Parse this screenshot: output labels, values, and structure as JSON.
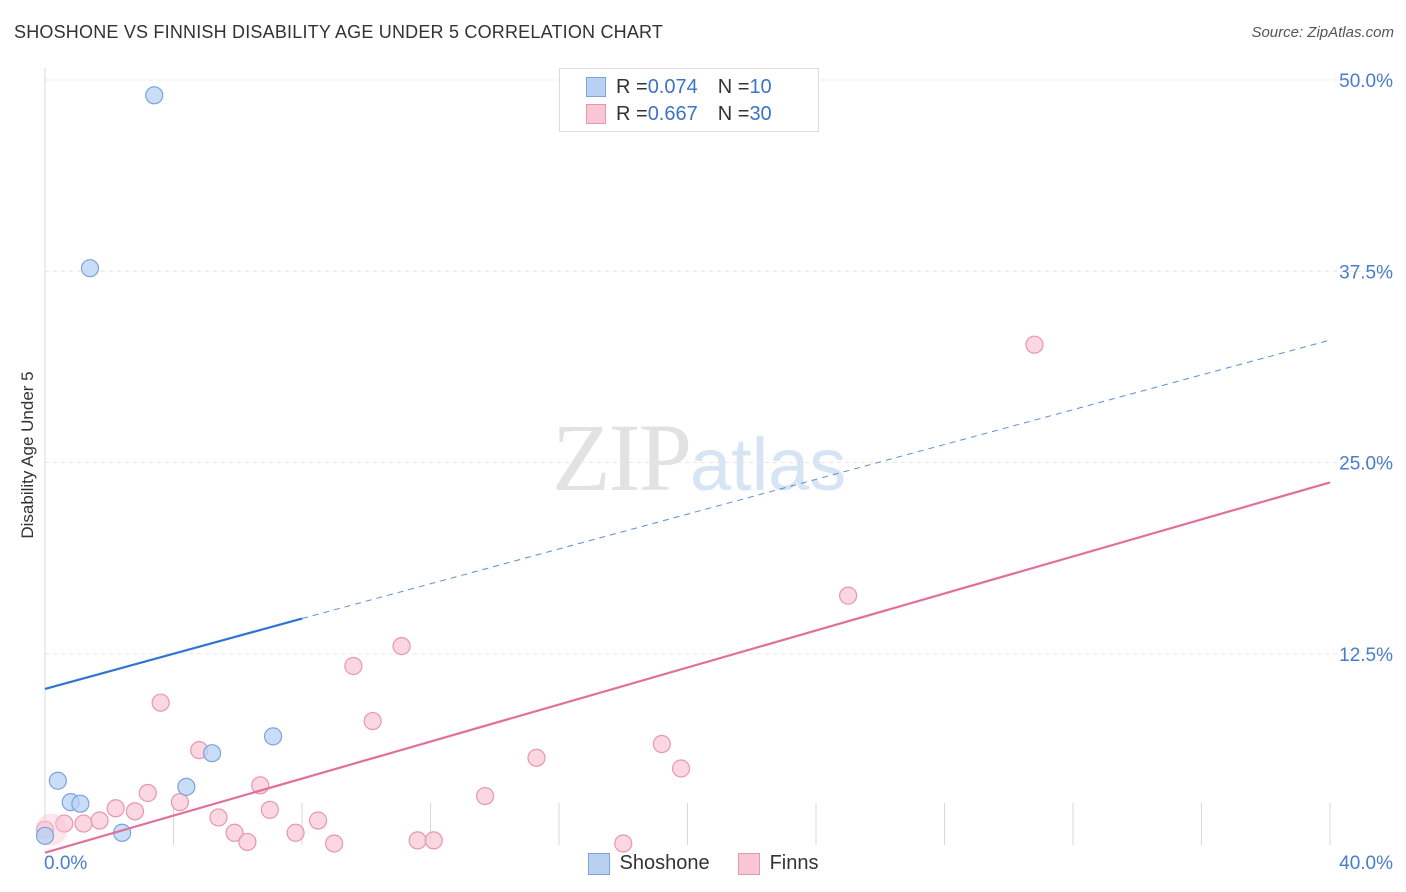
{
  "header": {
    "title": "SHOSHONE VS FINNISH DISABILITY AGE UNDER 5 CORRELATION CHART",
    "source": "Source: ZipAtlas.com"
  },
  "watermark": {
    "zip": "ZIP",
    "atlas": "atlas"
  },
  "colors": {
    "shoshone_fill": "#b8d1f3",
    "shoshone_stroke": "#7aa3dd",
    "shoshone_line": "#2f74d0",
    "finns_fill": "#f9c6d5",
    "finns_stroke": "#e996b0",
    "finns_line": "#e0709a",
    "tick_label": "#4a7cc9"
  },
  "legend": {
    "shoshone": {
      "r_label": "R = ",
      "r_value": "0.074",
      "n_label": "N = ",
      "n_value": "10"
    },
    "finns": {
      "r_label": "R = ",
      "r_value": "0.667",
      "n_label": "N = ",
      "n_value": "30"
    }
  },
  "chart_data": {
    "type": "scatter",
    "title": "SHOSHONE VS FINNISH DISABILITY AGE UNDER 5 CORRELATION CHART",
    "xlabel": "",
    "ylabel": "Disability Age Under 5",
    "xlim": [
      0,
      40
    ],
    "ylim": [
      0,
      50
    ],
    "x_tick_labels": [
      "0.0%",
      "40.0%"
    ],
    "y_ticks": [
      12.5,
      25.0,
      37.5,
      50.0
    ],
    "y_tick_labels": [
      "12.5%",
      "25.0%",
      "37.5%",
      "50.0%"
    ],
    "grid": true,
    "legend_placement": "top-center",
    "series": [
      {
        "name": "Shoshone",
        "points": [
          [
            3.4,
            49.0
          ],
          [
            1.4,
            37.7
          ],
          [
            0.0,
            0.6
          ],
          [
            0.4,
            4.2
          ],
          [
            0.8,
            2.8
          ],
          [
            1.1,
            2.7
          ],
          [
            2.4,
            0.8
          ],
          [
            4.4,
            3.8
          ],
          [
            5.2,
            6.0
          ],
          [
            7.1,
            7.1
          ]
        ],
        "trend": {
          "x0": 0,
          "y0": 10.2,
          "x1": 8.0,
          "y1": 14.8,
          "dashed_to_x": 40,
          "dashed_to_y": 33.0
        }
      },
      {
        "name": "Finns",
        "points": [
          [
            0.0,
            1.0
          ],
          [
            0.6,
            1.4
          ],
          [
            1.2,
            1.4
          ],
          [
            1.7,
            1.6
          ],
          [
            2.2,
            2.4
          ],
          [
            2.8,
            2.2
          ],
          [
            3.2,
            3.4
          ],
          [
            3.6,
            9.3
          ],
          [
            4.2,
            2.8
          ],
          [
            4.8,
            6.2
          ],
          [
            5.4,
            1.8
          ],
          [
            5.9,
            0.8
          ],
          [
            6.3,
            0.2
          ],
          [
            6.7,
            3.9
          ],
          [
            7.0,
            2.3
          ],
          [
            7.8,
            0.8
          ],
          [
            8.5,
            1.6
          ],
          [
            9.0,
            0.1
          ],
          [
            9.6,
            11.7
          ],
          [
            10.2,
            8.1
          ],
          [
            11.1,
            13.0
          ],
          [
            11.6,
            0.3
          ],
          [
            12.1,
            0.3
          ],
          [
            13.7,
            3.2
          ],
          [
            15.3,
            5.7
          ],
          [
            18.0,
            0.1
          ],
          [
            19.2,
            6.6
          ],
          [
            19.8,
            5.0
          ],
          [
            25.0,
            16.3
          ],
          [
            30.8,
            32.7
          ]
        ],
        "trend": {
          "x0": 0,
          "y0": -0.5,
          "x1": 40,
          "y1": 23.7
        }
      }
    ]
  }
}
